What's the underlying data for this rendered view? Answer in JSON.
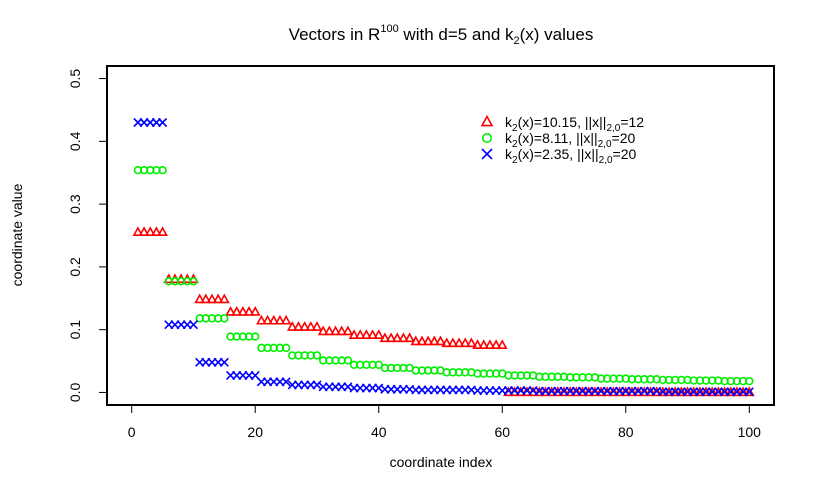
{
  "chart_data": {
    "type": "scatter",
    "title_main": "Vectors in R",
    "title_sup": "100",
    "title_rest": " with d=5 and k",
    "title_sub": "2",
    "title_end": "(x) values",
    "xlabel": "coordinate index",
    "ylabel": "coordinate value",
    "xlim": [
      -4,
      104
    ],
    "ylim": [
      -0.02,
      0.52
    ],
    "xticks": [
      0,
      20,
      40,
      60,
      80,
      100
    ],
    "xtick_labels": [
      "0",
      "20",
      "40",
      "60",
      "80",
      "100"
    ],
    "yticks": [
      0.0,
      0.1,
      0.2,
      0.3,
      0.4,
      0.5
    ],
    "ytick_labels": [
      "0.0",
      "0.1",
      "0.2",
      "0.3",
      "0.4",
      "0.5"
    ],
    "legend_position": "top-right",
    "series": [
      {
        "name": "k2(x)=10.15, ||x||2,0=12",
        "legend_k": "=10.15, ",
        "legend_norm": "=12",
        "color": "#ff0000",
        "marker": "triangle",
        "block_size": 5,
        "values": [
          0.255,
          0.18,
          0.148,
          0.128,
          0.114,
          0.104,
          0.097,
          0.091,
          0.086,
          0.081,
          0.078,
          0.075,
          0.0,
          0.0,
          0.0,
          0.0,
          0.0,
          0.0,
          0.0,
          0.0
        ]
      },
      {
        "name": "k2(x)=8.11, ||x||2,0=20",
        "legend_k": "=8.11, ",
        "legend_norm": "=20",
        "color": "#00ee00",
        "marker": "circle",
        "block_size": 5,
        "values": [
          0.354,
          0.177,
          0.118,
          0.089,
          0.071,
          0.059,
          0.051,
          0.044,
          0.039,
          0.035,
          0.032,
          0.03,
          0.027,
          0.025,
          0.024,
          0.022,
          0.021,
          0.02,
          0.019,
          0.018
        ]
      },
      {
        "name": "k2(x)=2.35, ||x||2,0=20",
        "legend_k": "=2.35, ",
        "legend_norm": "=20",
        "color": "#0000ff",
        "marker": "cross",
        "block_size": 5,
        "values": [
          0.43,
          0.108,
          0.048,
          0.027,
          0.017,
          0.012,
          0.009,
          0.007,
          0.005,
          0.004,
          0.004,
          0.003,
          0.003,
          0.002,
          0.002,
          0.002,
          0.002,
          0.001,
          0.001,
          0.001
        ]
      }
    ],
    "legend_labels": {
      "k_prefix": "k",
      "k_sub": "2",
      "k_arg": "(x)",
      "norm_prefix": "||x||",
      "norm_sub": "2,0"
    }
  }
}
